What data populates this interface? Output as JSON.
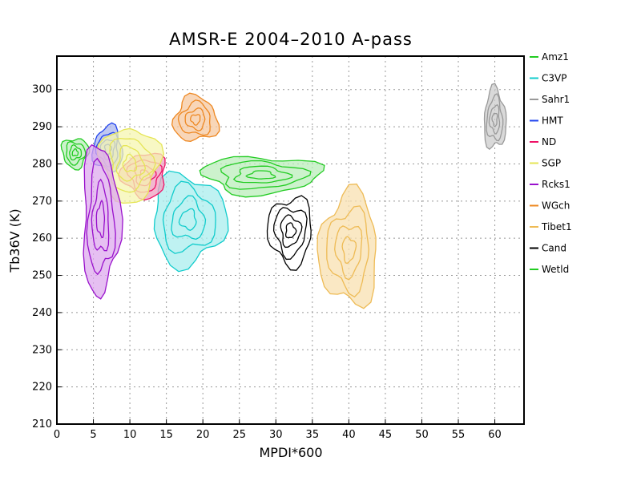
{
  "chart_data": {
    "type": "contour",
    "title": "AMSR-E 2004–2010 A-pass",
    "xlabel": "MPDI*600",
    "ylabel": "Tb36V (K)",
    "xlim": [
      0,
      64
    ],
    "ylim": [
      210,
      309
    ],
    "xticks": [
      0,
      5,
      10,
      15,
      20,
      25,
      30,
      35,
      40,
      45,
      50,
      55,
      60
    ],
    "yticks": [
      210,
      220,
      230,
      240,
      250,
      260,
      270,
      280,
      290,
      300
    ],
    "grid": true,
    "legend_position": "right",
    "series": [
      {
        "name": "Amz1",
        "color": "#22cc22",
        "fill": "#bbeebb",
        "center": [
          2.5,
          283
        ],
        "spread": [
          1.8,
          4
        ]
      },
      {
        "name": "C3VP",
        "color": "#11cccc",
        "fill": "#aaeeee",
        "center": [
          18,
          265
        ],
        "spread": [
          5,
          12
        ]
      },
      {
        "name": "Sahr1",
        "color": "#999999",
        "fill": "#cccccc",
        "center": [
          60,
          292
        ],
        "spread": [
          1.5,
          8
        ]
      },
      {
        "name": "HMT",
        "color": "#2244ee",
        "fill": "#aab4ee",
        "center": [
          7,
          284
        ],
        "spread": [
          2,
          6
        ]
      },
      {
        "name": "ND",
        "color": "#ee1166",
        "fill": "#eea0c0",
        "center": [
          12,
          277
        ],
        "spread": [
          3,
          6
        ]
      },
      {
        "name": "SGP",
        "color": "#e5e555",
        "fill": "#f5f5b0",
        "center": [
          10,
          280
        ],
        "spread": [
          4,
          10
        ]
      },
      {
        "name": "Rcks1",
        "color": "#9911cc",
        "fill": "#ddaaee",
        "center": [
          6,
          265
        ],
        "spread": [
          2.5,
          20
        ]
      },
      {
        "name": "WGch",
        "color": "#ee8822",
        "fill": "#f5c8a0",
        "center": [
          19,
          292
        ],
        "spread": [
          3,
          6
        ]
      },
      {
        "name": "Tibet1",
        "color": "#eebb55",
        "fill": "#f8e0b0",
        "center": [
          40,
          257
        ],
        "spread": [
          4,
          15
        ]
      },
      {
        "name": "Cand",
        "color": "#000000",
        "fill": "none",
        "center": [
          32,
          262
        ],
        "spread": [
          3,
          9
        ]
      },
      {
        "name": "Wetld",
        "color": "#22cc22",
        "fill": "#bbeebb",
        "center": [
          28,
          277
        ],
        "spread": [
          8,
          5
        ]
      }
    ]
  }
}
